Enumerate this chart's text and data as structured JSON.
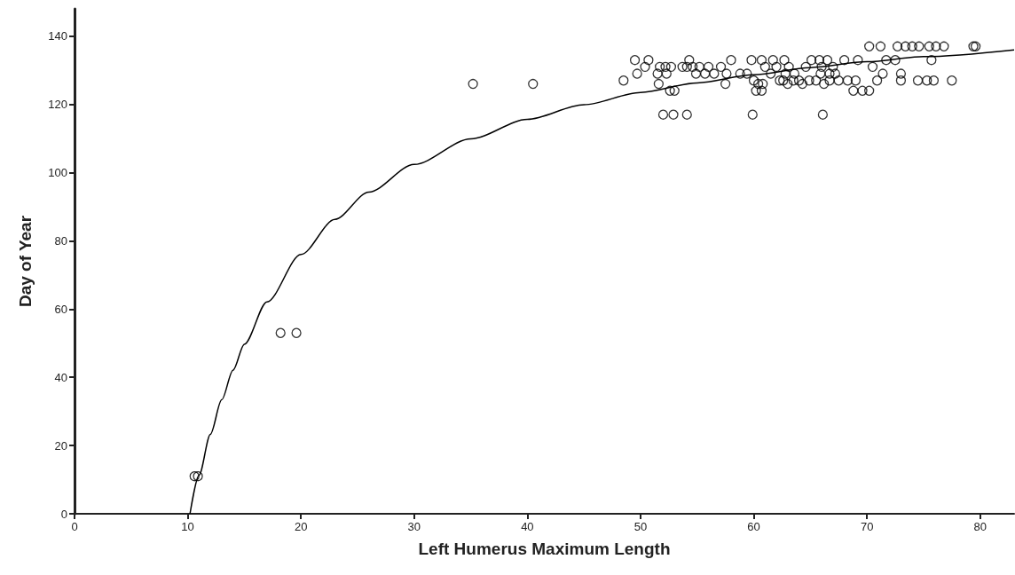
{
  "chart_data": {
    "type": "scatter",
    "xlabel": "Left Humerus Maximum Length",
    "ylabel": "Day of Year",
    "xlim": [
      0,
      83
    ],
    "ylim": [
      0,
      148
    ],
    "xticks": [
      0,
      10,
      20,
      30,
      40,
      50,
      60,
      70,
      80
    ],
    "yticks": [
      0,
      20,
      40,
      60,
      80,
      100,
      120,
      140
    ],
    "grid": false,
    "series": [
      {
        "marker": "circle",
        "color": "#000000",
        "x": [
          10.6,
          10.9,
          18.2,
          19.6,
          35.2,
          40.5,
          48.5,
          49.5,
          49.7,
          50.4,
          50.7,
          51.5,
          51.6,
          51.7,
          52.0,
          52.2,
          52.3,
          52.6,
          52.7,
          52.9,
          53.0,
          53.7,
          54.1,
          54.1,
          54.3,
          54.6,
          54.9,
          55.2,
          55.7,
          56.0,
          56.5,
          57.1,
          57.5,
          57.6,
          58.0,
          58.8,
          59.4,
          59.8,
          59.9,
          60.0,
          60.2,
          60.4,
          60.7,
          60.7,
          60.8,
          61.0,
          61.5,
          61.7,
          62.0,
          62.3,
          62.6,
          62.7,
          62.8,
          63.0,
          63.1,
          63.5,
          63.6,
          64.0,
          64.3,
          64.6,
          64.9,
          65.1,
          65.5,
          65.8,
          65.9,
          66.0,
          66.1,
          66.2,
          66.5,
          66.7,
          66.7,
          67.0,
          67.2,
          67.5,
          68.0,
          68.3,
          68.8,
          69.0,
          69.2,
          69.6,
          70.2,
          70.2,
          70.5,
          70.9,
          71.2,
          71.4,
          71.7,
          72.5,
          72.7,
          73.0,
          73.0,
          73.4,
          74.0,
          74.5,
          74.6,
          75.3,
          75.5,
          75.7,
          75.9,
          76.1,
          76.8,
          77.5,
          79.4,
          79.6
        ],
        "values": [
          11,
          11,
          53,
          53,
          126,
          126,
          127,
          133,
          129,
          131,
          133,
          129,
          126,
          131,
          117,
          131,
          129,
          124,
          131,
          117,
          124,
          131,
          131,
          117,
          133,
          131,
          129,
          131,
          129,
          131,
          129,
          131,
          126,
          129,
          133,
          129,
          129,
          133,
          117,
          127,
          124,
          126,
          124,
          133,
          126,
          131,
          129,
          133,
          131,
          127,
          127,
          133,
          129,
          126,
          131,
          127,
          129,
          127,
          126,
          131,
          127,
          133,
          127,
          133,
          129,
          131,
          117,
          126,
          133,
          129,
          127,
          131,
          129,
          127,
          133,
          127,
          124,
          127,
          133,
          124,
          137,
          124,
          131,
          127,
          137,
          129,
          133,
          133,
          137,
          129,
          127,
          137,
          137,
          127,
          137,
          127,
          137,
          133,
          127,
          137,
          137,
          127,
          137,
          137
        ]
      },
      {
        "type": "line",
        "marker": "none",
        "line_style": "solid",
        "color": "#000000",
        "x": [
          10.2,
          11,
          12,
          13,
          14,
          15,
          17,
          20,
          23,
          26,
          30,
          35,
          40,
          45,
          50,
          55,
          60,
          65,
          70,
          75,
          83
        ],
        "values": [
          0,
          11.3,
          23.3,
          33.4,
          42.1,
          49.7,
          62.1,
          76.0,
          86.3,
          94.3,
          102.4,
          109.9,
          115.6,
          119.9,
          123.5,
          126.3,
          128.7,
          130.8,
          132.5,
          134.0,
          136.0
        ]
      }
    ]
  }
}
